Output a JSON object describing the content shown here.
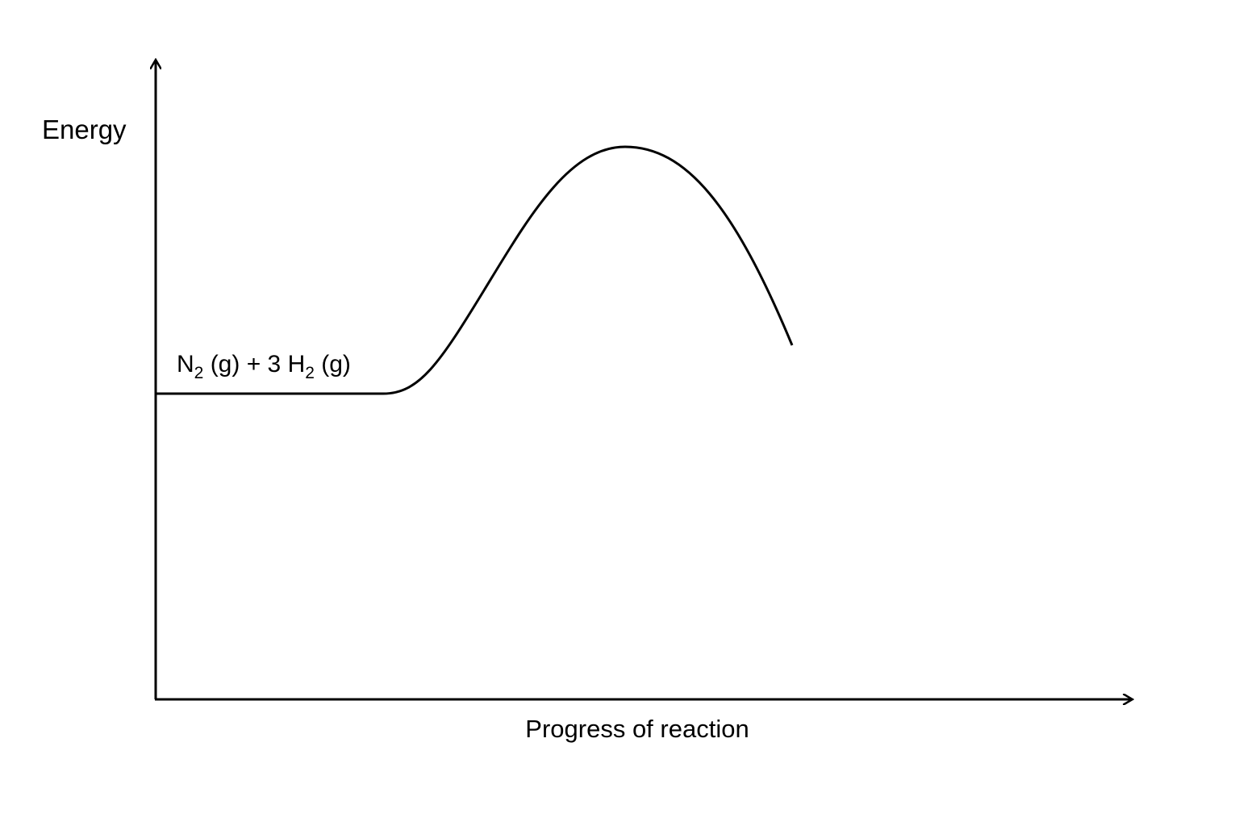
{
  "y_axis": {
    "label": "Energy"
  },
  "x_axis": {
    "label": "Progress of reaction"
  },
  "reactants_label": [
    "N",
    "2",
    " (g) + 3 H",
    "2",
    " (g)"
  ]
}
